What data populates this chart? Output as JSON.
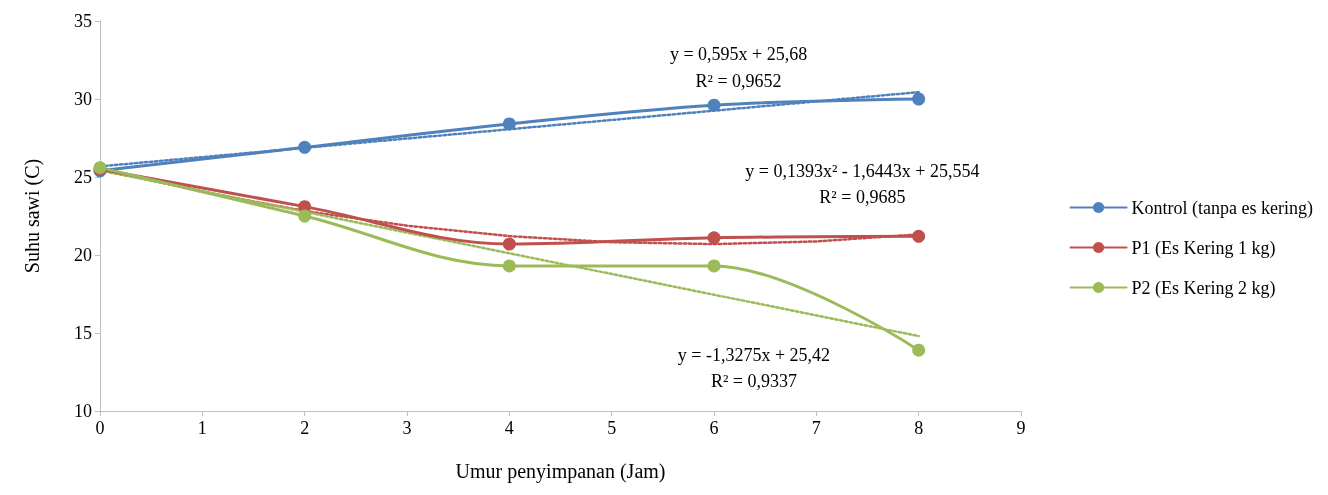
{
  "chart_data": {
    "type": "line",
    "xlabel": "Umur penyimpanan (Jam)",
    "ylabel": "Suhu sawi (C)",
    "x": [
      0,
      2,
      4,
      6,
      8
    ],
    "xlim": [
      0,
      9
    ],
    "xticks": [
      0,
      1,
      2,
      3,
      4,
      5,
      6,
      7,
      8,
      9
    ],
    "ylim": [
      10,
      35
    ],
    "yticks": [
      10,
      15,
      20,
      25,
      30,
      35
    ],
    "grid": false,
    "legend": "right",
    "marker": "circle",
    "line_style": "solid",
    "series": [
      {
        "name": "Kontrol (tanpa es kering)",
        "color": "#4f81bd",
        "values": [
          25.4,
          26.9,
          28.4,
          29.6,
          30.0
        ]
      },
      {
        "name": "P1 (Es Kering 1 kg)",
        "color": "#c0504d",
        "values": [
          25.5,
          23.1,
          20.7,
          21.1,
          21.2
        ]
      },
      {
        "name": "P2 (Es Kering 2 kg)",
        "color": "#9bbb59",
        "values": [
          25.6,
          22.5,
          19.3,
          19.3,
          13.9
        ]
      },
      {
        "type": "line",
        "color": "#4f81bd",
        "x": [
          0,
          8
        ],
        "values": [
          25.68,
          30.44
        ],
        "marker": "none",
        "line_style": "dotted"
      },
      {
        "type": "line",
        "color": "#c0504d",
        "x": [
          0,
          1,
          2,
          3,
          4,
          5,
          6,
          7,
          8
        ],
        "values": [
          25.55,
          24.05,
          22.82,
          21.88,
          21.21,
          20.82,
          20.7,
          20.87,
          21.32
        ],
        "marker": "none",
        "line_style": "dotted"
      },
      {
        "type": "line",
        "color": "#9bbb59",
        "x": [
          0,
          8
        ],
        "values": [
          25.42,
          14.8
        ],
        "marker": "none",
        "line_style": "dotted"
      }
    ],
    "annotations": [
      "y = 0,595x + 25,68",
      "R² = 0,9652",
      "y = 0,1393x² - 1,6443x + 25,554",
      "R² = 0,9685",
      "y = -1,3275x + 25,42",
      "R² = 0,9337"
    ]
  }
}
